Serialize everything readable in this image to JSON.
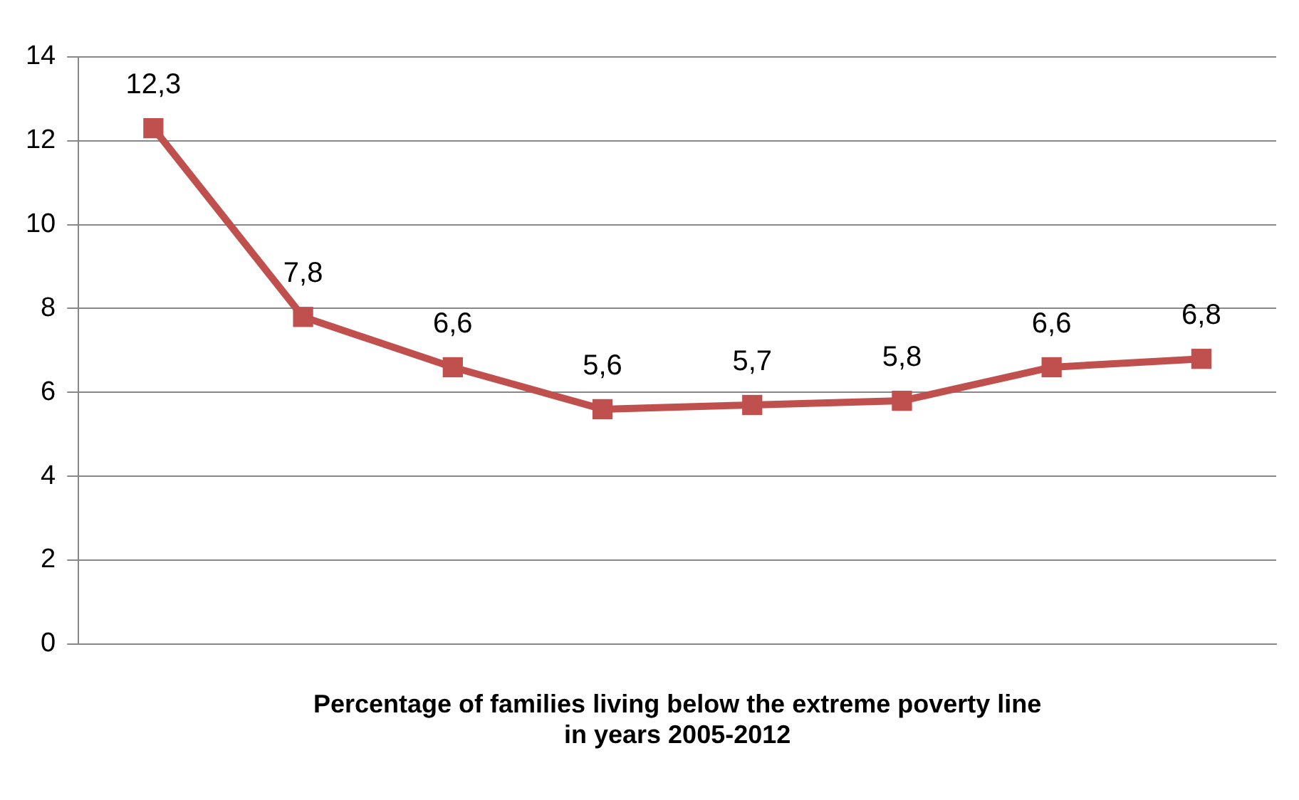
{
  "chart_data": {
    "type": "line",
    "xlabel": "Percentage of families living below the extreme poverty line\nin years 2005-2012",
    "categories": [
      null,
      null,
      null,
      null,
      null,
      null,
      null,
      null
    ],
    "series": [
      {
        "color": "#c0504d",
        "values": [
          12.3,
          7.8,
          6.6,
          5.6,
          5.7,
          5.8,
          6.6,
          6.8
        ],
        "value_labels": [
          "12,3",
          "7,8",
          "6,6",
          "5,6",
          "5,7",
          "5,8",
          "6,6",
          "6,8"
        ]
      }
    ],
    "ylim": [
      0,
      14
    ],
    "yticks": [
      0,
      2,
      4,
      6,
      8,
      10,
      12,
      14
    ],
    "grid": "y",
    "legend": false,
    "marker": "square",
    "line_style": "solid"
  }
}
